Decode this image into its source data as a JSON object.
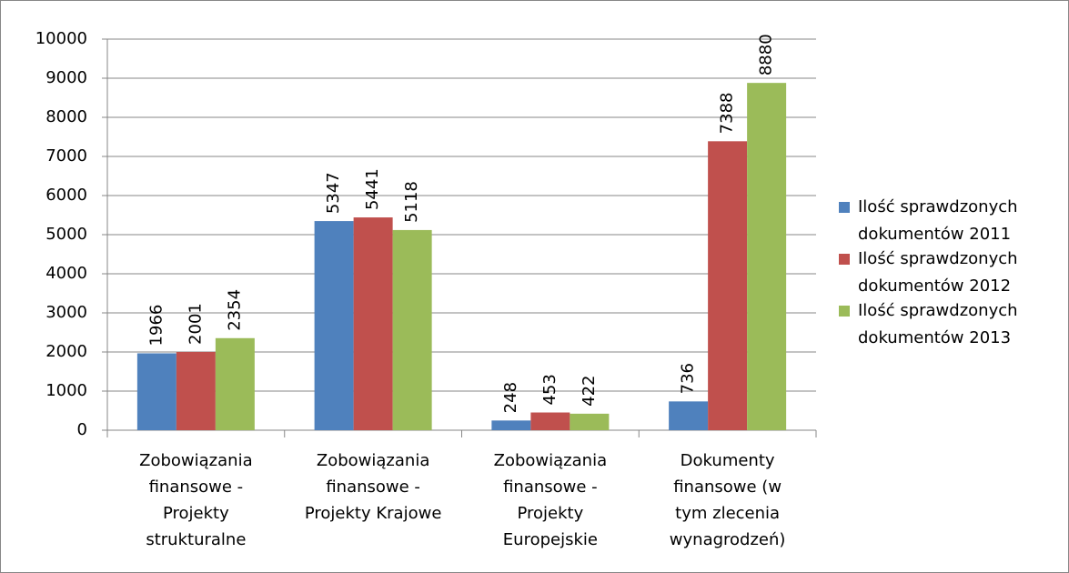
{
  "chart_data": {
    "type": "bar",
    "categories": [
      "Zobowiązania\nfinansowe -\nProjekty\nstrukturalne",
      "Zobowiązania\nfinansowe -\nProjekty Krajowe",
      "Zobowiązania\nfinansowe -\nProjekty\nEuropejskie",
      "Dokumenty\nfinansowe (w\ntym zlecenia\nwynagrodzeń)"
    ],
    "series": [
      {
        "name": "Ilość sprawdzonych\ndokumentów 2011",
        "color": "#4f81bd",
        "values": [
          1966,
          5347,
          248,
          736
        ]
      },
      {
        "name": "Ilość sprawdzonych\ndokumentów 2012",
        "color": "#c0504d",
        "values": [
          2001,
          5441,
          453,
          7388
        ]
      },
      {
        "name": "Ilość sprawdzonych\ndokumentów 2013",
        "color": "#9bbb59",
        "values": [
          2354,
          5118,
          422,
          8880
        ]
      }
    ],
    "ylim": [
      0,
      10000
    ],
    "yticks": [
      0,
      1000,
      2000,
      3000,
      4000,
      5000,
      6000,
      7000,
      8000,
      9000,
      10000
    ],
    "grid": true,
    "legend": "right",
    "data_labels": true
  }
}
